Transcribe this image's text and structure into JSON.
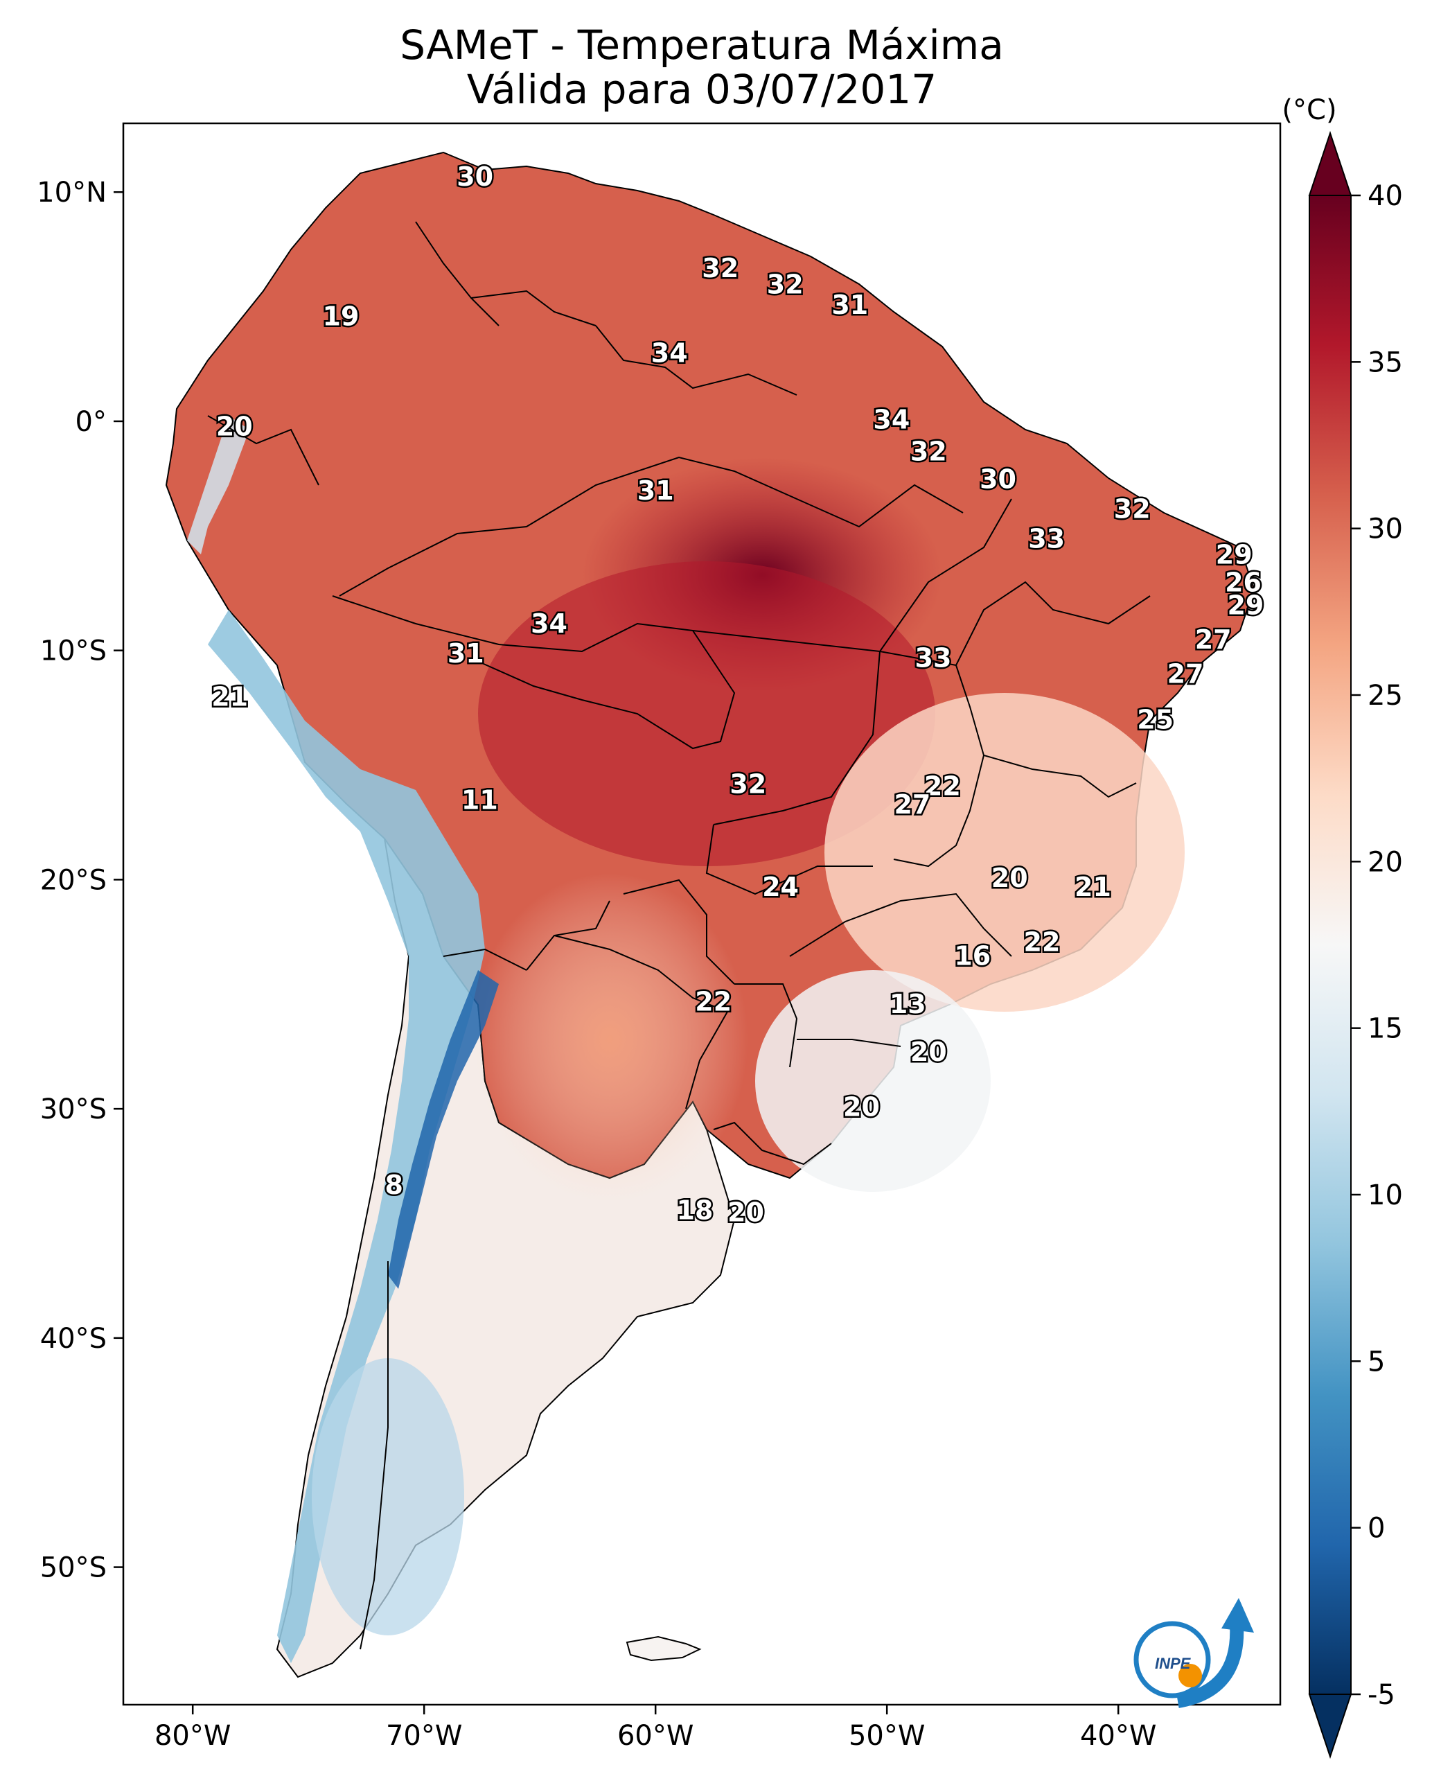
{
  "title": {
    "line1": "SAMeT - Temperatura Máxima",
    "line2": "Válida para 03/07/2017"
  },
  "map": {
    "lon_range": [
      -83,
      -33
    ],
    "lat_range": [
      -56,
      13
    ],
    "lon_ticks": [
      {
        "value": -80,
        "label": "80°W"
      },
      {
        "value": -70,
        "label": "70°W"
      },
      {
        "value": -60,
        "label": "60°W"
      },
      {
        "value": -50,
        "label": "50°W"
      },
      {
        "value": -40,
        "label": "40°W"
      }
    ],
    "lat_ticks": [
      {
        "value": 10,
        "label": "10°N"
      },
      {
        "value": 0,
        "label": "0°"
      },
      {
        "value": -10,
        "label": "10°S"
      },
      {
        "value": -20,
        "label": "20°S"
      },
      {
        "value": -30,
        "label": "30°S"
      },
      {
        "value": -40,
        "label": "40°S"
      },
      {
        "value": -50,
        "label": "50°S"
      }
    ],
    "station_labels": [
      {
        "lon": -67.8,
        "lat": 10.6,
        "text": "30"
      },
      {
        "lon": -57.2,
        "lat": 6.6,
        "text": "32"
      },
      {
        "lon": -54.4,
        "lat": 5.9,
        "text": "32"
      },
      {
        "lon": -51.6,
        "lat": 5.0,
        "text": "31"
      },
      {
        "lon": -73.6,
        "lat": 4.5,
        "text": "19"
      },
      {
        "lon": -59.4,
        "lat": 2.9,
        "text": "34"
      },
      {
        "lon": -49.8,
        "lat": 0.0,
        "text": "34"
      },
      {
        "lon": -78.2,
        "lat": -0.3,
        "text": "20"
      },
      {
        "lon": -48.2,
        "lat": -1.4,
        "text": "32"
      },
      {
        "lon": -45.2,
        "lat": -2.6,
        "text": "30"
      },
      {
        "lon": -60.0,
        "lat": -3.1,
        "text": "31"
      },
      {
        "lon": -39.4,
        "lat": -3.9,
        "text": "32"
      },
      {
        "lon": -43.1,
        "lat": -5.2,
        "text": "33"
      },
      {
        "lon": -35.0,
        "lat": -5.9,
        "text": "29"
      },
      {
        "lon": -34.6,
        "lat": -7.1,
        "text": "26"
      },
      {
        "lon": -34.5,
        "lat": -8.1,
        "text": "29"
      },
      {
        "lon": -64.6,
        "lat": -8.9,
        "text": "34"
      },
      {
        "lon": -35.9,
        "lat": -9.6,
        "text": "27"
      },
      {
        "lon": -68.2,
        "lat": -10.2,
        "text": "31"
      },
      {
        "lon": -48.0,
        "lat": -10.4,
        "text": "33"
      },
      {
        "lon": -37.1,
        "lat": -11.1,
        "text": "27"
      },
      {
        "lon": -78.4,
        "lat": -12.1,
        "text": "21"
      },
      {
        "lon": -38.4,
        "lat": -13.1,
        "text": "25"
      },
      {
        "lon": -56.0,
        "lat": -15.9,
        "text": "32"
      },
      {
        "lon": -47.6,
        "lat": -16.0,
        "text": "22"
      },
      {
        "lon": -48.9,
        "lat": -16.8,
        "text": "27"
      },
      {
        "lon": -67.6,
        "lat": -16.6,
        "text": "11"
      },
      {
        "lon": -44.7,
        "lat": -20.0,
        "text": "20"
      },
      {
        "lon": -54.6,
        "lat": -20.4,
        "text": "24"
      },
      {
        "lon": -41.1,
        "lat": -20.4,
        "text": "21"
      },
      {
        "lon": -43.3,
        "lat": -22.8,
        "text": "22"
      },
      {
        "lon": -46.3,
        "lat": -23.4,
        "text": "16"
      },
      {
        "lon": -57.5,
        "lat": -25.4,
        "text": "22"
      },
      {
        "lon": -49.1,
        "lat": -25.5,
        "text": "13"
      },
      {
        "lon": -48.2,
        "lat": -27.6,
        "text": "20"
      },
      {
        "lon": -51.1,
        "lat": -30.0,
        "text": "20"
      },
      {
        "lon": -71.3,
        "lat": -33.4,
        "text": "8"
      },
      {
        "lon": -58.3,
        "lat": -34.5,
        "text": "18"
      },
      {
        "lon": -56.1,
        "lat": -34.6,
        "text": "20"
      }
    ]
  },
  "colorbar": {
    "unit": "(°C)",
    "min": -5,
    "max": 40,
    "ticks": [
      40,
      35,
      30,
      25,
      20,
      15,
      10,
      5,
      0,
      -5
    ],
    "colors": [
      "#053061",
      "#2166ac",
      "#4393c3",
      "#92c5de",
      "#d1e5f0",
      "#f7f7f7",
      "#fddbc7",
      "#f4a582",
      "#d6604d",
      "#b2182b",
      "#67001f"
    ]
  },
  "logo": {
    "text": "INPE",
    "colors": [
      "#1f7fc4",
      "#f39200"
    ]
  }
}
